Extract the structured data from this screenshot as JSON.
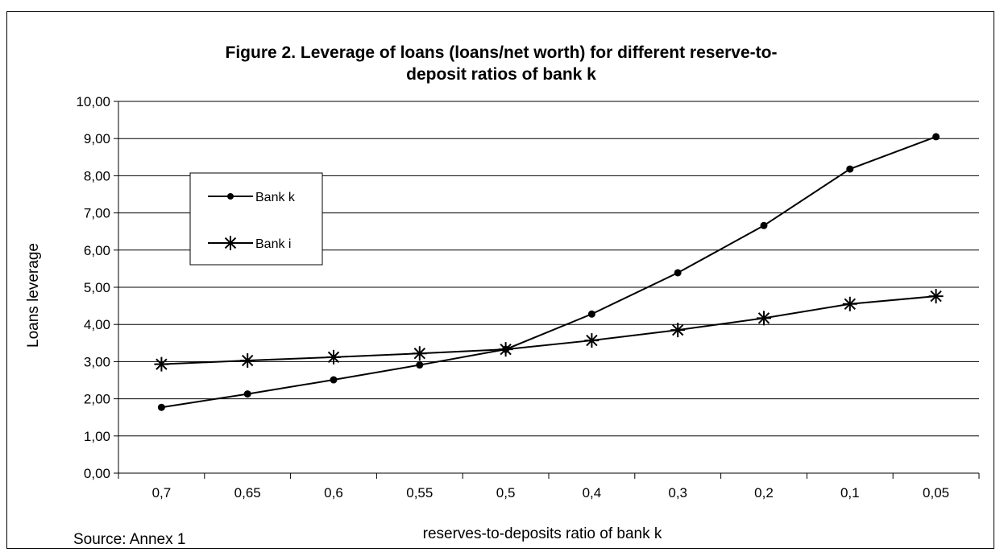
{
  "chart_data": {
    "type": "line",
    "title": "Figure 2. Leverage of loans (loans/net worth) for different reserve-to-deposit ratios of bank k",
    "title_lines": [
      "Figure 2. Leverage of loans (loans/net worth) for different reserve-to-",
      "deposit ratios of bank k"
    ],
    "xlabel": "reserves-to-deposits ratio of bank k",
    "ylabel": "Loans leverage",
    "categories": [
      "0,7",
      "0,65",
      "0,6",
      "0,55",
      "0,5",
      "0,4",
      "0,3",
      "0,2",
      "0,1",
      "0,05"
    ],
    "ylim": [
      0,
      10
    ],
    "y_ticks": [
      "0,00",
      "1,00",
      "2,00",
      "3,00",
      "4,00",
      "5,00",
      "6,00",
      "7,00",
      "8,00",
      "9,00",
      "10,00"
    ],
    "grid": "horizontal",
    "legend_position": "top-left",
    "series": [
      {
        "name": "Bank k",
        "marker": "circle",
        "values": [
          1.77,
          2.13,
          2.51,
          2.91,
          3.33,
          4.28,
          5.39,
          6.66,
          8.18,
          9.05
        ]
      },
      {
        "name": "Bank i",
        "marker": "asterisk",
        "values": [
          2.93,
          3.03,
          3.12,
          3.22,
          3.33,
          3.57,
          3.85,
          4.17,
          4.55,
          4.76
        ]
      }
    ],
    "source_note": "Source: Annex 1"
  }
}
